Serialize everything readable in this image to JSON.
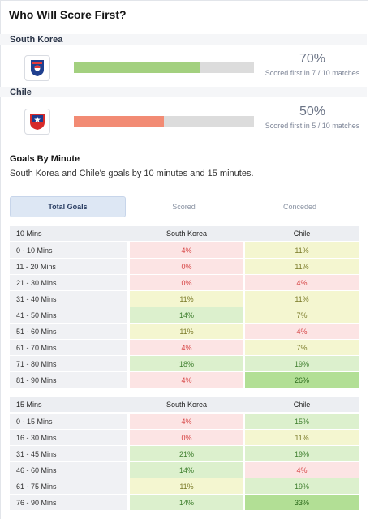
{
  "header": {
    "title": "Who Will Score First?"
  },
  "teams": [
    {
      "name": "South Korea",
      "percent": "70%",
      "subtitle": "Scored first in 7 / 10 matches",
      "fill": 0.7,
      "bar_color": "#a3d07f",
      "badge_icon": "korea-football-association-crest"
    },
    {
      "name": "Chile",
      "percent": "50%",
      "subtitle": "Scored first in 5 / 10 matches",
      "fill": 0.5,
      "bar_color": "#f28b74",
      "badge_icon": "chile-football-federation-crest"
    }
  ],
  "goals_by_minute": {
    "title": "Goals By Minute",
    "description": "South Korea and Chile's goals by 10 minutes and 15 minutes."
  },
  "tabs": [
    {
      "label": "Total Goals",
      "active": true
    },
    {
      "label": "Scored",
      "active": false
    },
    {
      "label": "Conceded",
      "active": false
    }
  ],
  "table_10": {
    "header": [
      "10 Mins",
      "South Korea",
      "Chile"
    ],
    "rows": [
      [
        "0 - 10 Mins",
        "4%",
        "11%"
      ],
      [
        "11 - 20 Mins",
        "0%",
        "11%"
      ],
      [
        "21 - 30 Mins",
        "0%",
        "4%"
      ],
      [
        "31 - 40 Mins",
        "11%",
        "11%"
      ],
      [
        "41 - 50 Mins",
        "14%",
        "7%"
      ],
      [
        "51 - 60 Mins",
        "11%",
        "4%"
      ],
      [
        "61 - 70 Mins",
        "4%",
        "7%"
      ],
      [
        "71 - 80 Mins",
        "18%",
        "19%"
      ],
      [
        "81 - 90 Mins",
        "4%",
        "26%"
      ]
    ]
  },
  "table_15": {
    "header": [
      "15 Mins",
      "South Korea",
      "Chile"
    ],
    "rows": [
      [
        "0 - 15 Mins",
        "4%",
        "15%"
      ],
      [
        "16 - 30 Mins",
        "0%",
        "11%"
      ],
      [
        "31 - 45 Mins",
        "21%",
        "19%"
      ],
      [
        "46 - 60 Mins",
        "14%",
        "4%"
      ],
      [
        "61 - 75 Mins",
        "11%",
        "19%"
      ],
      [
        "76 - 90 Mins",
        "14%",
        "33%"
      ]
    ]
  },
  "colors": {
    "red_bg": "#fce4e4",
    "red_text": "#d64545",
    "yellow_bg": "#f4f6d0",
    "yellow_text": "#7a7a28",
    "green_bg": "#dcf0cd",
    "green_text": "#3f7f2e",
    "strong_green_bg": "#b2df95",
    "strong_green_text": "#2c6a1c"
  }
}
